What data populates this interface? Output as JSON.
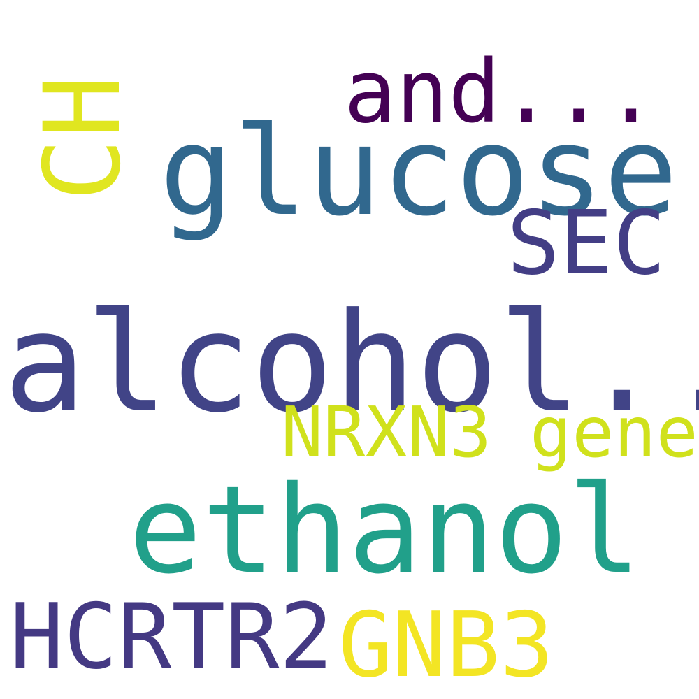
{
  "words": [
    {
      "text": "and...",
      "color": "#440154"
    },
    {
      "text": "glucose",
      "color": "#31688e"
    },
    {
      "text": "CH",
      "color": "#e0e620"
    },
    {
      "text": "SEC",
      "color": "#433e85"
    },
    {
      "text": "alcohol...",
      "color": "#414487"
    },
    {
      "text": "NRXN3",
      "color": "#d0e11c"
    },
    {
      "text": "gene",
      "color": "#d0e11c"
    },
    {
      "text": "ethanol",
      "color": "#21a08a"
    },
    {
      "text": "HCRTR2",
      "color": "#443983"
    },
    {
      "text": "GNB3",
      "color": "#f3e524"
    }
  ]
}
